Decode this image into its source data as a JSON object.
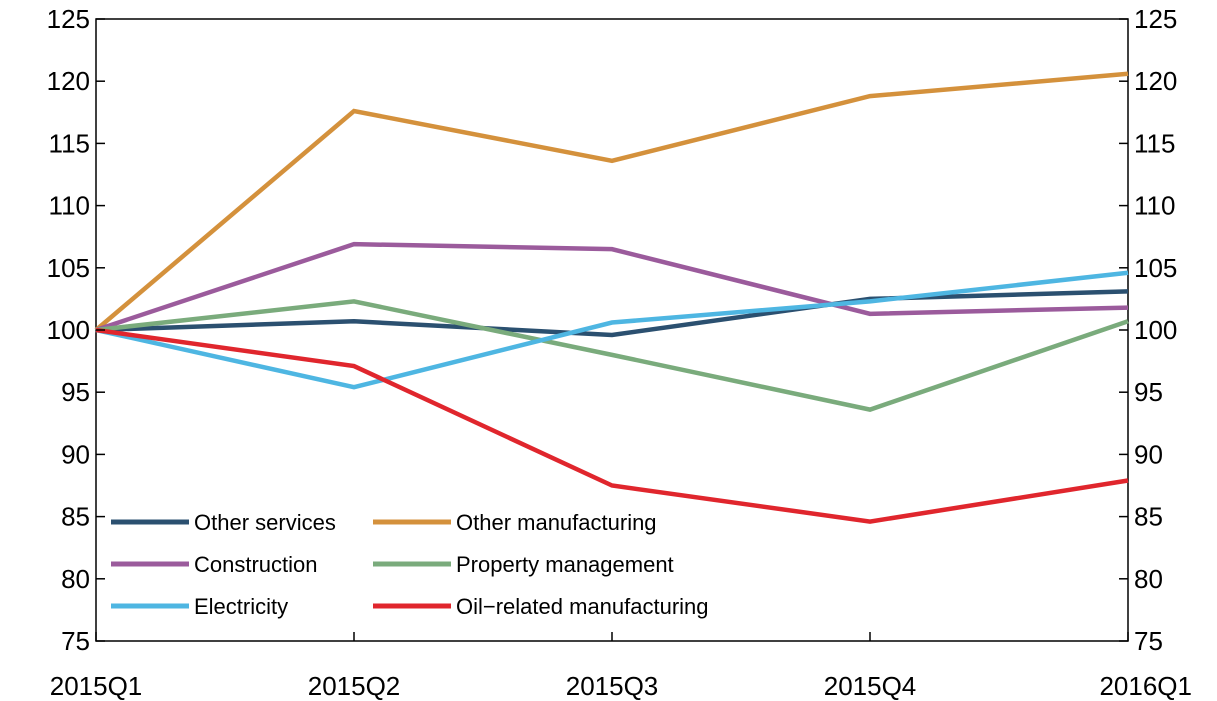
{
  "chart_data": {
    "type": "line",
    "categories": [
      "2015Q1",
      "2015Q2",
      "2015Q3",
      "2015Q4",
      "2016Q1"
    ],
    "ylim": [
      75,
      125
    ],
    "yticks": [
      75,
      80,
      85,
      90,
      95,
      100,
      105,
      110,
      115,
      120,
      125
    ],
    "grid": false,
    "legend_position": "bottom-left",
    "series": [
      {
        "name": "Other services",
        "color": "#2b5070",
        "values": [
          100,
          100.7,
          99.6,
          102.5,
          103.1
        ]
      },
      {
        "name": "Other manufacturing",
        "color": "#d4913c",
        "values": [
          100,
          117.6,
          113.6,
          118.8,
          120.6
        ]
      },
      {
        "name": "Construction",
        "color": "#9b5b9c",
        "values": [
          100,
          106.9,
          106.5,
          101.3,
          101.8
        ]
      },
      {
        "name": "Property management",
        "color": "#7aab7c",
        "values": [
          100,
          102.3,
          98.0,
          93.6,
          100.7
        ]
      },
      {
        "name": "Electricity",
        "color": "#4eb6e2",
        "values": [
          100,
          95.4,
          100.6,
          102.3,
          104.6
        ]
      },
      {
        "name": "Oil−related manufacturing",
        "color": "#e0262d",
        "values": [
          100,
          97.1,
          87.5,
          84.6,
          87.9
        ]
      }
    ]
  }
}
